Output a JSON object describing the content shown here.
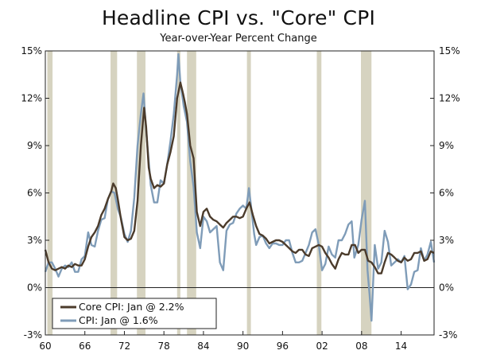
{
  "chart_data": {
    "type": "line",
    "title": "Headline CPI vs. \"Core\" CPI",
    "subtitle": "Year-over-Year Percent Change",
    "xlabel": "",
    "ylabel": "",
    "xlim": [
      1960,
      2019
    ],
    "ylim": [
      -3,
      15
    ],
    "x_ticks": [
      1960,
      1966,
      1972,
      1978,
      1984,
      1990,
      1996,
      2002,
      2008,
      2014
    ],
    "x_tick_labels": [
      "60",
      "66",
      "72",
      "78",
      "84",
      "90",
      "96",
      "02",
      "08",
      "14"
    ],
    "y_ticks": [
      -3,
      0,
      3,
      6,
      9,
      12,
      15
    ],
    "y_tick_labels": [
      "-3%",
      "0%",
      "3%",
      "6%",
      "9%",
      "12%",
      "15%"
    ],
    "recessions": [
      [
        1960.3,
        1961.1
      ],
      [
        1969.9,
        1970.9
      ],
      [
        1973.9,
        1975.2
      ],
      [
        1980.0,
        1980.5
      ],
      [
        1981.5,
        1982.9
      ],
      [
        1990.6,
        1991.2
      ],
      [
        2001.2,
        2001.9
      ],
      [
        2007.9,
        2009.5
      ]
    ],
    "legend_position": "bottom-left",
    "series": [
      {
        "name": "Core CPI: Jan @ 2.2%",
        "color": "#4b3b2b",
        "points": [
          [
            1960.0,
            2.4
          ],
          [
            1960.5,
            1.6
          ],
          [
            1961.0,
            1.2
          ],
          [
            1961.5,
            1.1
          ],
          [
            1962.0,
            1.2
          ],
          [
            1962.5,
            1.3
          ],
          [
            1963.0,
            1.2
          ],
          [
            1963.5,
            1.4
          ],
          [
            1964.0,
            1.3
          ],
          [
            1964.5,
            1.5
          ],
          [
            1965.0,
            1.4
          ],
          [
            1965.5,
            1.4
          ],
          [
            1966.0,
            1.8
          ],
          [
            1966.5,
            2.6
          ],
          [
            1967.0,
            3.2
          ],
          [
            1967.5,
            3.5
          ],
          [
            1968.0,
            3.9
          ],
          [
            1968.5,
            4.6
          ],
          [
            1969.0,
            5.0
          ],
          [
            1969.5,
            5.6
          ],
          [
            1970.0,
            6.1
          ],
          [
            1970.3,
            6.6
          ],
          [
            1970.7,
            6.3
          ],
          [
            1971.0,
            5.6
          ],
          [
            1971.5,
            4.3
          ],
          [
            1972.0,
            3.2
          ],
          [
            1972.5,
            3.0
          ],
          [
            1973.0,
            3.1
          ],
          [
            1973.5,
            3.6
          ],
          [
            1974.0,
            5.5
          ],
          [
            1974.5,
            9.0
          ],
          [
            1975.0,
            11.4
          ],
          [
            1975.3,
            10.2
          ],
          [
            1975.7,
            7.6
          ],
          [
            1976.0,
            6.9
          ],
          [
            1976.5,
            6.3
          ],
          [
            1977.0,
            6.5
          ],
          [
            1977.5,
            6.4
          ],
          [
            1978.0,
            6.6
          ],
          [
            1978.5,
            7.8
          ],
          [
            1979.0,
            8.6
          ],
          [
            1979.5,
            9.6
          ],
          [
            1980.0,
            12.0
          ],
          [
            1980.5,
            13.0
          ],
          [
            1980.9,
            12.3
          ],
          [
            1981.2,
            11.7
          ],
          [
            1981.5,
            11.0
          ],
          [
            1982.0,
            9.0
          ],
          [
            1982.5,
            8.2
          ],
          [
            1983.0,
            4.8
          ],
          [
            1983.5,
            3.9
          ],
          [
            1984.0,
            4.8
          ],
          [
            1984.5,
            5.0
          ],
          [
            1985.0,
            4.5
          ],
          [
            1985.5,
            4.3
          ],
          [
            1986.0,
            4.2
          ],
          [
            1986.5,
            4.0
          ],
          [
            1987.0,
            3.8
          ],
          [
            1987.5,
            4.1
          ],
          [
            1988.0,
            4.3
          ],
          [
            1988.5,
            4.5
          ],
          [
            1989.0,
            4.5
          ],
          [
            1989.5,
            4.4
          ],
          [
            1990.0,
            4.5
          ],
          [
            1990.5,
            5.0
          ],
          [
            1991.0,
            5.4
          ],
          [
            1991.5,
            4.6
          ],
          [
            1992.0,
            3.9
          ],
          [
            1992.5,
            3.4
          ],
          [
            1993.0,
            3.3
          ],
          [
            1993.5,
            3.1
          ],
          [
            1994.0,
            2.8
          ],
          [
            1994.5,
            2.9
          ],
          [
            1995.0,
            3.0
          ],
          [
            1995.5,
            3.0
          ],
          [
            1996.0,
            2.9
          ],
          [
            1996.5,
            2.7
          ],
          [
            1997.0,
            2.5
          ],
          [
            1997.5,
            2.3
          ],
          [
            1998.0,
            2.2
          ],
          [
            1998.5,
            2.4
          ],
          [
            1999.0,
            2.4
          ],
          [
            1999.5,
            2.1
          ],
          [
            2000.0,
            2.0
          ],
          [
            2000.5,
            2.5
          ],
          [
            2001.0,
            2.6
          ],
          [
            2001.5,
            2.7
          ],
          [
            2002.0,
            2.6
          ],
          [
            2002.5,
            2.2
          ],
          [
            2003.0,
            1.9
          ],
          [
            2003.5,
            1.5
          ],
          [
            2004.0,
            1.2
          ],
          [
            2004.5,
            1.8
          ],
          [
            2005.0,
            2.2
          ],
          [
            2005.5,
            2.1
          ],
          [
            2006.0,
            2.1
          ],
          [
            2006.5,
            2.7
          ],
          [
            2007.0,
            2.7
          ],
          [
            2007.5,
            2.2
          ],
          [
            2008.0,
            2.4
          ],
          [
            2008.5,
            2.4
          ],
          [
            2009.0,
            1.7
          ],
          [
            2009.5,
            1.6
          ],
          [
            2010.0,
            1.3
          ],
          [
            2010.5,
            0.9
          ],
          [
            2011.0,
            0.9
          ],
          [
            2011.5,
            1.6
          ],
          [
            2012.0,
            2.2
          ],
          [
            2012.5,
            2.1
          ],
          [
            2013.0,
            1.9
          ],
          [
            2013.5,
            1.7
          ],
          [
            2014.0,
            1.6
          ],
          [
            2014.5,
            1.9
          ],
          [
            2015.0,
            1.7
          ],
          [
            2015.5,
            1.8
          ],
          [
            2016.0,
            2.2
          ],
          [
            2016.5,
            2.2
          ],
          [
            2017.0,
            2.3
          ],
          [
            2017.5,
            1.7
          ],
          [
            2018.0,
            1.8
          ],
          [
            2018.5,
            2.3
          ],
          [
            2019.0,
            2.2
          ]
        ]
      },
      {
        "name": "CPI: Jan @ 1.6%",
        "color": "#7f9cb8",
        "points": [
          [
            1960.0,
            1.0
          ],
          [
            1960.5,
            1.6
          ],
          [
            1961.0,
            1.6
          ],
          [
            1961.5,
            1.2
          ],
          [
            1962.0,
            0.7
          ],
          [
            1962.5,
            1.2
          ],
          [
            1963.0,
            1.4
          ],
          [
            1963.5,
            1.3
          ],
          [
            1964.0,
            1.6
          ],
          [
            1964.5,
            1.0
          ],
          [
            1965.0,
            1.0
          ],
          [
            1965.5,
            1.8
          ],
          [
            1966.0,
            2.0
          ],
          [
            1966.5,
            3.5
          ],
          [
            1967.0,
            2.7
          ],
          [
            1967.5,
            2.6
          ],
          [
            1968.0,
            3.6
          ],
          [
            1968.5,
            4.3
          ],
          [
            1969.0,
            4.4
          ],
          [
            1969.5,
            5.6
          ],
          [
            1970.0,
            6.1
          ],
          [
            1970.5,
            6.0
          ],
          [
            1971.0,
            5.0
          ],
          [
            1971.5,
            4.4
          ],
          [
            1972.0,
            3.4
          ],
          [
            1972.5,
            2.9
          ],
          [
            1973.0,
            3.6
          ],
          [
            1973.5,
            5.7
          ],
          [
            1974.0,
            9.0
          ],
          [
            1974.5,
            11.0
          ],
          [
            1974.9,
            12.3
          ],
          [
            1975.3,
            10.0
          ],
          [
            1975.7,
            8.0
          ],
          [
            1976.0,
            6.5
          ],
          [
            1976.5,
            5.4
          ],
          [
            1977.0,
            5.4
          ],
          [
            1977.5,
            6.8
          ],
          [
            1978.0,
            6.6
          ],
          [
            1978.5,
            7.8
          ],
          [
            1979.0,
            9.3
          ],
          [
            1979.5,
            11.0
          ],
          [
            1980.0,
            13.5
          ],
          [
            1980.2,
            14.8
          ],
          [
            1980.5,
            13.0
          ],
          [
            1981.0,
            11.5
          ],
          [
            1981.5,
            10.5
          ],
          [
            1982.0,
            8.0
          ],
          [
            1982.5,
            6.4
          ],
          [
            1983.0,
            3.5
          ],
          [
            1983.5,
            2.5
          ],
          [
            1984.0,
            4.5
          ],
          [
            1984.5,
            4.2
          ],
          [
            1985.0,
            3.5
          ],
          [
            1985.5,
            3.7
          ],
          [
            1986.0,
            3.9
          ],
          [
            1986.5,
            1.6
          ],
          [
            1987.0,
            1.1
          ],
          [
            1987.5,
            3.6
          ],
          [
            1988.0,
            4.0
          ],
          [
            1988.5,
            4.1
          ],
          [
            1989.0,
            4.7
          ],
          [
            1989.5,
            5.0
          ],
          [
            1990.0,
            5.2
          ],
          [
            1990.5,
            5.0
          ],
          [
            1990.9,
            6.3
          ],
          [
            1991.3,
            4.9
          ],
          [
            1991.7,
            3.4
          ],
          [
            1992.0,
            2.7
          ],
          [
            1992.5,
            3.2
          ],
          [
            1993.0,
            3.3
          ],
          [
            1993.5,
            2.8
          ],
          [
            1994.0,
            2.5
          ],
          [
            1994.5,
            2.8
          ],
          [
            1995.0,
            2.8
          ],
          [
            1995.5,
            2.7
          ],
          [
            1996.0,
            2.7
          ],
          [
            1996.5,
            3.0
          ],
          [
            1997.0,
            3.0
          ],
          [
            1997.5,
            2.2
          ],
          [
            1998.0,
            1.6
          ],
          [
            1998.5,
            1.6
          ],
          [
            1999.0,
            1.7
          ],
          [
            1999.5,
            2.2
          ],
          [
            2000.0,
            2.7
          ],
          [
            2000.5,
            3.5
          ],
          [
            2001.0,
            3.7
          ],
          [
            2001.5,
            2.7
          ],
          [
            2002.0,
            1.1
          ],
          [
            2002.5,
            1.5
          ],
          [
            2003.0,
            2.6
          ],
          [
            2003.5,
            2.1
          ],
          [
            2004.0,
            1.9
          ],
          [
            2004.5,
            3.0
          ],
          [
            2005.0,
            3.0
          ],
          [
            2005.5,
            3.4
          ],
          [
            2006.0,
            4.0
          ],
          [
            2006.5,
            4.2
          ],
          [
            2006.9,
            1.9
          ],
          [
            2007.5,
            2.7
          ],
          [
            2008.0,
            4.3
          ],
          [
            2008.5,
            5.5
          ],
          [
            2008.9,
            1.1
          ],
          [
            2009.2,
            -0.4
          ],
          [
            2009.5,
            -2.1
          ],
          [
            2009.9,
            1.8
          ],
          [
            2010.0,
            2.7
          ],
          [
            2010.5,
            1.2
          ],
          [
            2011.0,
            1.6
          ],
          [
            2011.5,
            3.6
          ],
          [
            2012.0,
            2.9
          ],
          [
            2012.5,
            1.4
          ],
          [
            2013.0,
            1.6
          ],
          [
            2013.5,
            1.8
          ],
          [
            2014.0,
            1.6
          ],
          [
            2014.5,
            2.0
          ],
          [
            2015.0,
            -0.1
          ],
          [
            2015.5,
            0.2
          ],
          [
            2016.0,
            1.0
          ],
          [
            2016.5,
            1.1
          ],
          [
            2017.0,
            2.5
          ],
          [
            2017.5,
            1.7
          ],
          [
            2018.0,
            2.1
          ],
          [
            2018.5,
            2.9
          ],
          [
            2019.0,
            1.6
          ]
        ]
      }
    ]
  }
}
